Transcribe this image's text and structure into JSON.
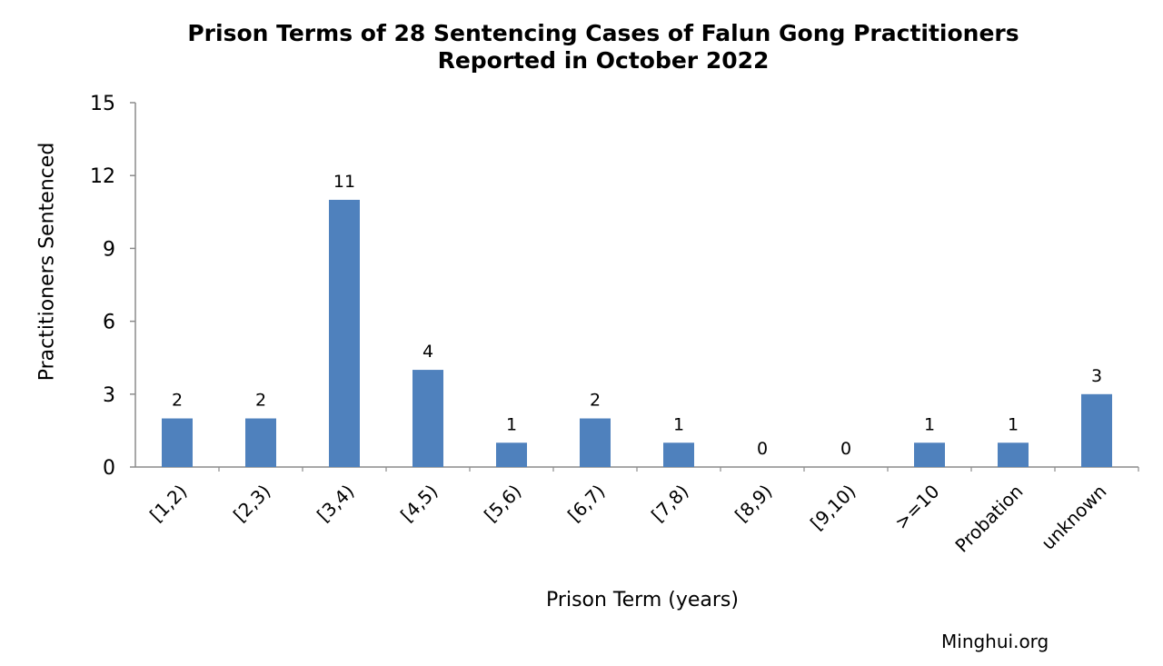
{
  "chart_data": {
    "type": "bar",
    "title": [
      "Prison Terms of 28 Sentencing Cases of Falun Gong Practitioners",
      "Reported in October 2022"
    ],
    "xlabel": "Prison Term (years)",
    "ylabel": "Practitioners Sentenced",
    "categories": [
      "[1,2)",
      "[2,3)",
      "[3,4)",
      "[4,5)",
      "[5,6)",
      "[6,7)",
      "[7,8)",
      "[8,9)",
      "[9,10)",
      ">=10",
      "Probation",
      "unknown"
    ],
    "values": [
      2,
      2,
      11,
      4,
      1,
      2,
      1,
      0,
      0,
      1,
      1,
      3
    ],
    "ylim": [
      0,
      15
    ],
    "yticks": [
      0,
      3,
      6,
      9,
      12,
      15
    ],
    "grid": false,
    "legend": "none",
    "bar_color": "#4f81bd",
    "data_labels": true
  },
  "credit": "Minghui.org"
}
